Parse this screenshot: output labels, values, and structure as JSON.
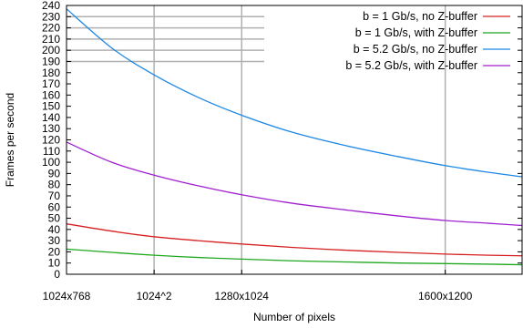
{
  "chart_data": {
    "type": "line",
    "xlabel": "Number of pixels",
    "ylabel": "Frames per second",
    "x_ticks": [
      {
        "label": "1024x768",
        "value": 786432
      },
      {
        "label": "1024^2",
        "value": 1048576
      },
      {
        "label": "1280x1024",
        "value": 1310720
      },
      {
        "label": "1600x1200",
        "value": 1920000
      }
    ],
    "xlim": [
      786432,
      2150000
    ],
    "ylim": [
      0,
      240
    ],
    "y_ticks": [
      0,
      10,
      20,
      30,
      40,
      50,
      60,
      70,
      80,
      90,
      100,
      110,
      120,
      130,
      140,
      150,
      160,
      170,
      180,
      190,
      200,
      210,
      220,
      230,
      240
    ],
    "grid": true,
    "legend_position": "top-right",
    "x_samples": [
      786432,
      922000,
      1048576,
      1180000,
      1310720,
      1460000,
      1620000,
      1780000,
      1920000,
      2050000,
      2150000
    ],
    "series": [
      {
        "name": "b = 1 Gb/s, no Z-buffer",
        "color": "#d62020",
        "values": [
          45,
          38.5,
          33.5,
          30,
          27,
          24,
          21.5,
          19.5,
          18,
          17,
          16.5
        ]
      },
      {
        "name": "b = 1 Gb/s, with Z-buffer",
        "color": "#1fa81f",
        "values": [
          22.5,
          19.5,
          17,
          15,
          13.5,
          12,
          11,
          10,
          9.5,
          9,
          8.5
        ]
      },
      {
        "name": "b = 5.2 Gb/s, no Z-buffer",
        "color": "#1e88e5",
        "values": [
          237,
          202,
          178,
          158,
          142,
          127,
          115,
          105,
          97,
          91,
          87
        ]
      },
      {
        "name": "b = 5.2 Gb/s, with Z-buffer",
        "color": "#a020d0",
        "values": [
          118,
          100,
          88.5,
          79,
          71,
          63.5,
          57.5,
          52,
          48,
          45.5,
          43.5
        ]
      }
    ]
  }
}
